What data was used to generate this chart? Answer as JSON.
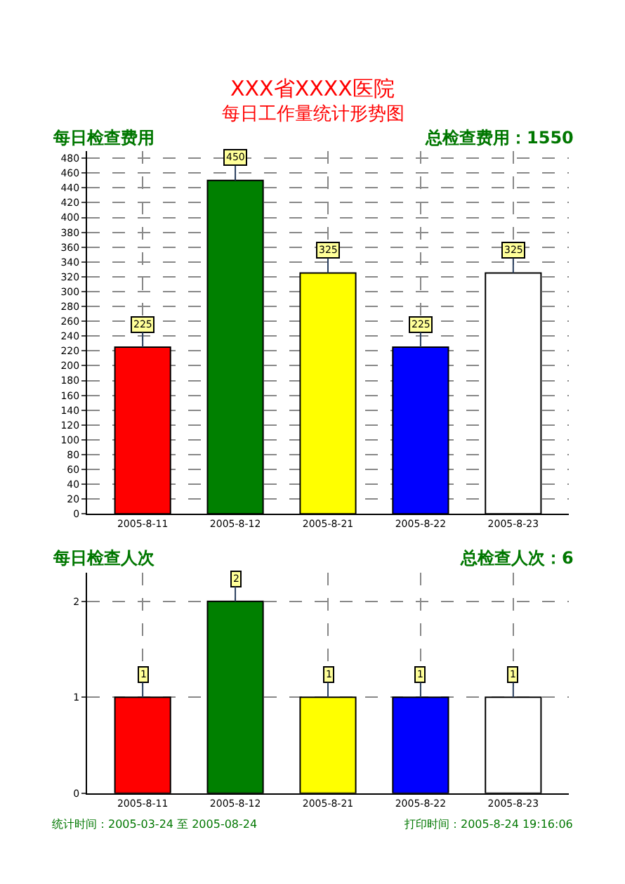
{
  "chart_data": [
    {
      "type": "bar",
      "title": "XXX省XXXX医院",
      "subtitle": "每日工作量统计形势图",
      "annotations": [
        "每日检查费用",
        "总检查费用：1550"
      ],
      "categories": [
        "2005-8-11",
        "2005-8-12",
        "2005-8-21",
        "2005-8-22",
        "2005-8-23"
      ],
      "values": [
        225,
        450,
        325,
        225,
        325
      ],
      "colors": [
        "#ff0000",
        "#008000",
        "#ffff00",
        "#0000ff",
        "#ffffff"
      ],
      "ylim": [
        0,
        490
      ],
      "yticks": [
        0,
        20,
        40,
        60,
        80,
        100,
        120,
        140,
        160,
        180,
        200,
        220,
        240,
        260,
        280,
        300,
        320,
        340,
        360,
        380,
        400,
        420,
        440,
        460,
        480
      ],
      "grid": true,
      "legend": false,
      "data_labels": true
    },
    {
      "type": "bar",
      "title": "每日检查人次",
      "annotations": [
        "总检查人次：6",
        "统计时间：2005-03-24 至 2005-08-24",
        "打印时间：2005-8-24 19:16:06"
      ],
      "categories": [
        "2005-8-11",
        "2005-8-12",
        "2005-8-21",
        "2005-8-22",
        "2005-8-23"
      ],
      "values": [
        1,
        2,
        1,
        1,
        1
      ],
      "colors": [
        "#ff0000",
        "#008000",
        "#ffff00",
        "#0000ff",
        "#ffffff"
      ],
      "ylim": [
        0,
        2.3
      ],
      "yticks": [
        0,
        1,
        2
      ],
      "grid": true,
      "legend": false,
      "data_labels": true
    }
  ]
}
